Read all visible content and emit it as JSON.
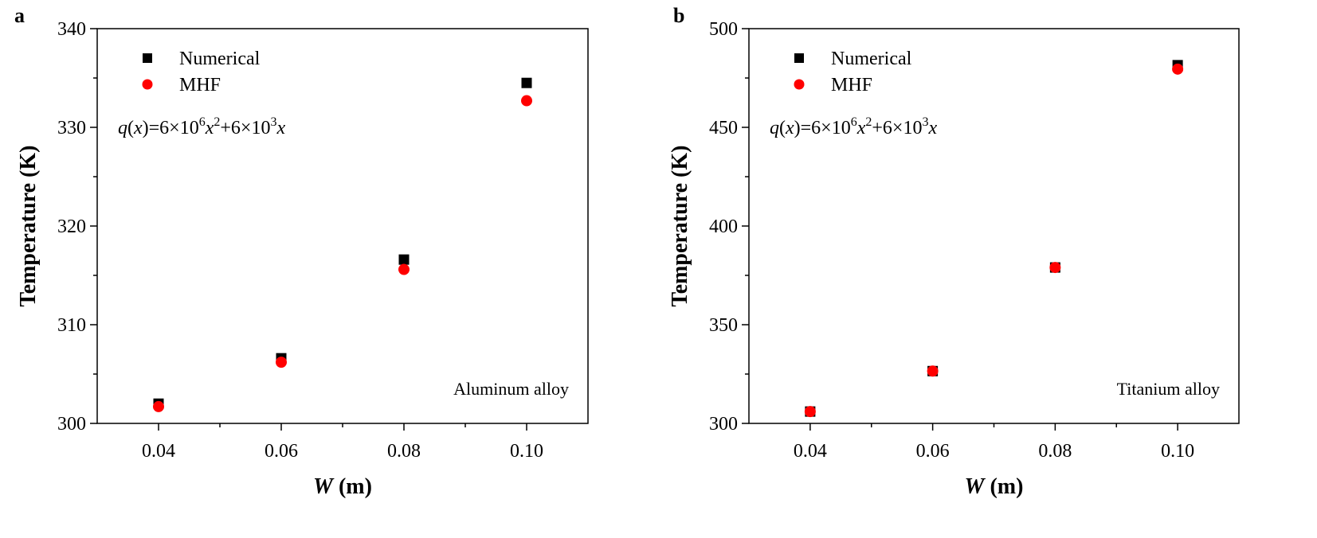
{
  "chart_data": [
    {
      "type": "scatter",
      "panel_label": "a",
      "xlabel": [
        "W",
        " (m)"
      ],
      "ylabel": "Temperature (K)",
      "formula": [
        "q",
        "(",
        "x",
        ")=6×10",
        "6",
        "x",
        "2",
        "+6×10",
        "3",
        "x"
      ],
      "annotation": "Aluminum alloy",
      "x": [
        0.04,
        0.06,
        0.08,
        0.1
      ],
      "series": [
        {
          "name": "Numerical",
          "color": "#000000",
          "marker": "square",
          "values": [
            302.0,
            306.6,
            316.6,
            334.5
          ]
        },
        {
          "name": "MHF",
          "color": "#ff0000",
          "marker": "circle",
          "values": [
            301.7,
            306.2,
            315.6,
            332.7
          ]
        }
      ],
      "xlim": [
        0.03,
        0.11
      ],
      "ylim": [
        300,
        340
      ],
      "xticks": [
        0.04,
        0.06,
        0.08,
        {
          "value": 0.1,
          "label": "0.10"
        }
      ],
      "xminorticks": [
        0.05,
        0.07,
        0.09
      ],
      "yticks": [
        300,
        310,
        320,
        330,
        340
      ],
      "yminorticks": [
        305,
        315,
        325,
        335
      ],
      "legend": "upper left"
    },
    {
      "type": "scatter",
      "panel_label": "b",
      "xlabel": [
        "W",
        " (m)"
      ],
      "ylabel": "Temperature (K)",
      "formula": [
        "q",
        "(",
        "x",
        ")=6×10",
        "6",
        "x",
        "2",
        "+6×10",
        "3",
        "x"
      ],
      "annotation": "Titanium alloy",
      "x": [
        0.04,
        0.06,
        0.08,
        0.1
      ],
      "series": [
        {
          "name": "Numerical",
          "color": "#000000",
          "marker": "square",
          "values": [
            306,
            326.5,
            379,
            481.5
          ]
        },
        {
          "name": "MHF",
          "color": "#ff0000",
          "marker": "circle",
          "values": [
            306,
            326.5,
            379,
            479.5
          ]
        }
      ],
      "xlim": [
        0.03,
        0.11
      ],
      "ylim": [
        300,
        500
      ],
      "xticks": [
        0.04,
        0.06,
        0.08,
        {
          "value": 0.1,
          "label": "0.10"
        }
      ],
      "xminorticks": [
        0.05,
        0.07,
        0.09
      ],
      "yticks": [
        300,
        350,
        400,
        450,
        500
      ],
      "yminorticks": [
        325,
        375,
        425,
        475
      ],
      "legend": "upper left"
    }
  ]
}
